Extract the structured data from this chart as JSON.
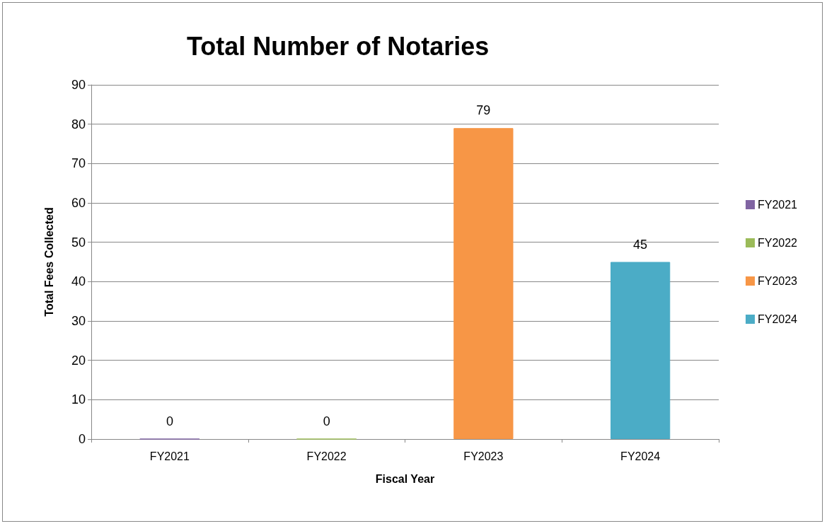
{
  "chart_data": {
    "type": "bar",
    "title": "Total Number of Notaries",
    "xlabel": "Fiscal Year",
    "ylabel": "Total Fees Collected",
    "categories": [
      "FY2021",
      "FY2022",
      "FY2023",
      "FY2024"
    ],
    "stacked": true,
    "series": [
      {
        "name": "FY2021",
        "color": "#8064a2",
        "values": [
          0,
          null,
          null,
          null
        ]
      },
      {
        "name": "FY2022",
        "color": "#9bbb59",
        "values": [
          null,
          0,
          null,
          null
        ]
      },
      {
        "name": "FY2023",
        "color": "#f79646",
        "values": [
          null,
          null,
          79,
          null
        ]
      },
      {
        "name": "FY2024",
        "color": "#4bacc6",
        "values": [
          null,
          null,
          null,
          45
        ]
      }
    ],
    "ylim": [
      0,
      90
    ],
    "yticks": [
      0,
      10,
      20,
      30,
      40,
      50,
      60,
      70,
      80,
      90
    ],
    "grid": "y",
    "legend": "right",
    "data_labels": true
  }
}
